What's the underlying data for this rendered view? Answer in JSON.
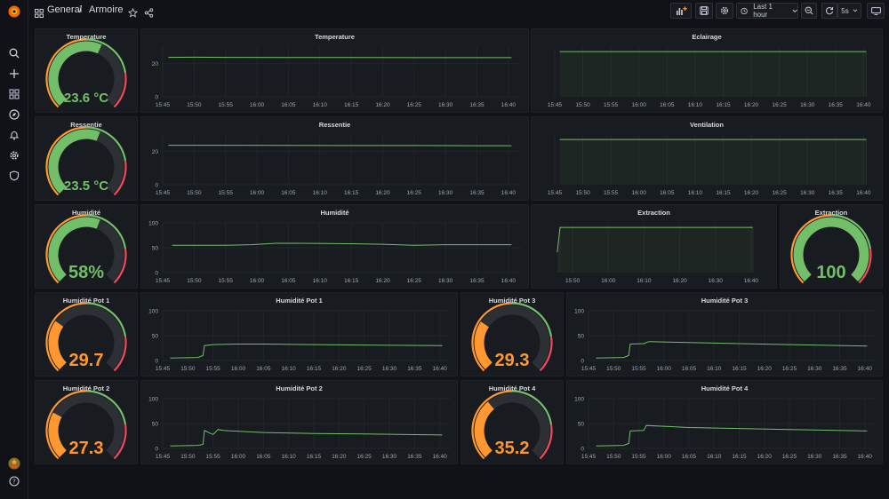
{
  "breadcrumb": {
    "folder": "General",
    "separator": "/",
    "dashboard": "Armoire"
  },
  "toolbar": {
    "time_range": "Last 1 hour",
    "refresh": "5s"
  },
  "colors": {
    "green": "#73bf69",
    "orange": "#ff9830",
    "red": "#f2495c",
    "track": "#2c2f34",
    "line": "#73bf69"
  },
  "panels": {
    "temperature_gauge": {
      "title": "Temperature",
      "value": "23.6 °C",
      "fraction": 0.59
    },
    "temperature_graph": {
      "title": "Temperature"
    },
    "eclairage_graph": {
      "title": "Eclairage"
    },
    "ressentie_gauge": {
      "title": "Ressentie",
      "value": "23.5 °C",
      "fraction": 0.58
    },
    "ressentie_graph": {
      "title": "Ressentie"
    },
    "ventilation_graph": {
      "title": "Ventilation"
    },
    "humidite_gauge": {
      "title": "Humidité",
      "value": "58%",
      "fraction": 0.58
    },
    "humidite_graph": {
      "title": "Humidité"
    },
    "extraction_graph": {
      "title": "Extraction"
    },
    "extraction_gauge": {
      "title": "Extraction",
      "value": "100",
      "fraction": 1.0
    },
    "pot1_gauge": {
      "title": "Humidité Pot 1",
      "value": "29.7",
      "fraction": 0.297
    },
    "pot1_graph": {
      "title": "Humidité Pot 1"
    },
    "pot3_gauge": {
      "title": "Humidité Pot 3",
      "value": "29.3",
      "fraction": 0.293
    },
    "pot3_graph": {
      "title": "Humidité Pot 3"
    },
    "pot2_gauge": {
      "title": "Humidité Pot 2",
      "value": "27.3",
      "fraction": 0.273
    },
    "pot2_graph": {
      "title": "Humidité Pot 2"
    },
    "pot4_gauge": {
      "title": "Humidité Pot 4",
      "value": "35.2",
      "fraction": 0.352
    },
    "pot4_graph": {
      "title": "Humidité Pot 4"
    }
  },
  "chart_data": [
    {
      "id": "temperature_graph",
      "type": "line",
      "x_ticks": [
        "15:45",
        "15:50",
        "15:55",
        "16:00",
        "16:05",
        "16:10",
        "16:15",
        "16:20",
        "16:25",
        "16:30",
        "16:35",
        "16:40"
      ],
      "y_ticks": [
        "0",
        "20"
      ],
      "ylim": [
        0,
        30
      ],
      "series": [
        {
          "x": [
            0.9,
            5,
            10,
            20,
            30,
            40,
            50,
            55.5
          ],
          "y": [
            23.8,
            23.9,
            23.8,
            23.7,
            23.7,
            23.6,
            23.6,
            23.6
          ]
        }
      ]
    },
    {
      "id": "eclairage_graph",
      "type": "line",
      "x_ticks": [
        "15:45",
        "15:50",
        "15:55",
        "16:00",
        "16:05",
        "16:10",
        "16:15",
        "16:20",
        "16:25",
        "16:30",
        "16:35",
        "16:40"
      ],
      "y_ticks": [],
      "ylim": [
        0,
        1.1
      ],
      "fill": true,
      "series": [
        {
          "x": [
            0.9,
            55.5
          ],
          "y": [
            1,
            1
          ]
        }
      ]
    },
    {
      "id": "ressentie_graph",
      "type": "line",
      "x_ticks": [
        "15:45",
        "15:50",
        "15:55",
        "16:00",
        "16:05",
        "16:10",
        "16:15",
        "16:20",
        "16:25",
        "16:30",
        "16:35",
        "16:40"
      ],
      "y_ticks": [
        "0",
        "20"
      ],
      "ylim": [
        0,
        30
      ],
      "series": [
        {
          "x": [
            0.9,
            10,
            20,
            30,
            40,
            50,
            55.5
          ],
          "y": [
            23.8,
            23.8,
            23.7,
            23.6,
            23.6,
            23.5,
            23.5
          ]
        }
      ]
    },
    {
      "id": "ventilation_graph",
      "type": "line",
      "x_ticks": [
        "15:45",
        "15:50",
        "15:55",
        "16:00",
        "16:05",
        "16:10",
        "16:15",
        "16:20",
        "16:25",
        "16:30",
        "16:35",
        "16:40"
      ],
      "y_ticks": [],
      "ylim": [
        0,
        1.1
      ],
      "fill": true,
      "series": [
        {
          "x": [
            0.9,
            55.5
          ],
          "y": [
            1,
            1
          ]
        }
      ]
    },
    {
      "id": "humidite_graph",
      "type": "line",
      "x_ticks": [
        "15:45",
        "15:50",
        "15:55",
        "16:00",
        "16:05",
        "16:10",
        "16:15",
        "16:20",
        "16:25",
        "16:30",
        "16:35",
        "16:40"
      ],
      "y_ticks": [
        "0",
        "50",
        "100"
      ],
      "ylim": [
        0,
        100
      ],
      "series": [
        {
          "x": [
            1.5,
            10,
            14,
            18,
            22,
            30,
            35,
            40,
            45,
            55.5
          ],
          "y": [
            55,
            55,
            56,
            59,
            59,
            58,
            57,
            55,
            56,
            56
          ]
        }
      ]
    },
    {
      "id": "extraction_graph",
      "type": "line",
      "x_ticks": [
        "15:50",
        "16:00",
        "16:10",
        "16:20",
        "16:30",
        "16:40"
      ],
      "y_ticks": [],
      "ylim": [
        0,
        110
      ],
      "xlim": [
        0,
        60
      ],
      "fill": true,
      "series": [
        {
          "x": [
            0.7,
            1.5,
            55.5
          ],
          "y": [
            45,
            100,
            100
          ]
        }
      ]
    },
    {
      "id": "pot1_graph",
      "type": "line",
      "x_ticks": [
        "15:45",
        "15:50",
        "15:55",
        "16:00",
        "16:05",
        "16:10",
        "16:15",
        "16:20",
        "16:25",
        "16:30",
        "16:35",
        "16:40"
      ],
      "y_ticks": [
        "0",
        "50",
        "100"
      ],
      "ylim": [
        0,
        100
      ],
      "series": [
        {
          "x": [
            1.5,
            7,
            8,
            8.3,
            10,
            15,
            20,
            30,
            40,
            55.5
          ],
          "y": [
            5,
            6,
            10,
            30,
            32,
            33,
            33,
            32,
            31,
            30
          ]
        }
      ]
    },
    {
      "id": "pot3_graph",
      "type": "line",
      "x_ticks": [
        "15:45",
        "15:50",
        "15:55",
        "16:00",
        "16:05",
        "16:10",
        "16:15",
        "16:20",
        "16:25",
        "16:30",
        "16:35",
        "16:40"
      ],
      "y_ticks": [
        "0",
        "50",
        "100"
      ],
      "ylim": [
        0,
        100
      ],
      "series": [
        {
          "x": [
            1.5,
            7,
            8,
            8.3,
            11,
            12,
            20,
            30,
            40,
            55.5
          ],
          "y": [
            5,
            6,
            10,
            33,
            34,
            38,
            36,
            34,
            32,
            29
          ]
        }
      ]
    },
    {
      "id": "pot2_graph",
      "type": "line",
      "x_ticks": [
        "15:45",
        "15:50",
        "15:55",
        "16:00",
        "16:05",
        "16:10",
        "16:15",
        "16:20",
        "16:25",
        "16:30",
        "16:35",
        "16:40"
      ],
      "y_ticks": [
        "0",
        "50",
        "100"
      ],
      "ylim": [
        0,
        100
      ],
      "series": [
        {
          "x": [
            1.5,
            7,
            8,
            8.3,
            9.5,
            10,
            11,
            12,
            20,
            30,
            40,
            55.5
          ],
          "y": [
            5,
            6,
            8,
            36,
            30,
            28,
            38,
            36,
            32,
            30,
            29,
            27
          ]
        }
      ]
    },
    {
      "id": "pot4_graph",
      "type": "line",
      "x_ticks": [
        "15:45",
        "15:50",
        "15:55",
        "16:00",
        "16:05",
        "16:10",
        "16:15",
        "16:20",
        "16:25",
        "16:30",
        "16:35",
        "16:40"
      ],
      "y_ticks": [
        "0",
        "50",
        "100"
      ],
      "ylim": [
        0,
        100
      ],
      "series": [
        {
          "x": [
            1.5,
            7,
            8,
            8.3,
            11,
            11.5,
            20,
            30,
            40,
            55.5
          ],
          "y": [
            5,
            6,
            10,
            35,
            36,
            46,
            42,
            40,
            38,
            35
          ]
        }
      ]
    }
  ]
}
